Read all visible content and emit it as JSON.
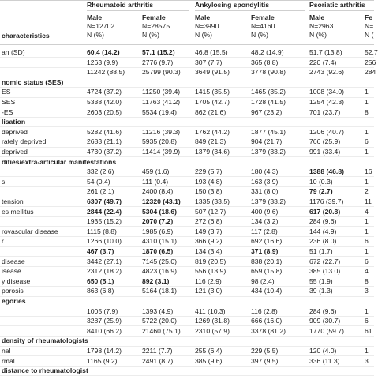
{
  "header": {
    "groups": [
      "Rheumatoid arthritis",
      "Ankylosing spondylitis",
      "Psoriatic arthritis"
    ],
    "stub": "characteristics",
    "columns": [
      [
        "Male",
        "N=12702",
        "N (%)"
      ],
      [
        "Female",
        "N=28575",
        "N (%)"
      ],
      [
        "Male",
        "N=3990",
        "N (%)"
      ],
      [
        "Female",
        "N=4160",
        "N (%)"
      ],
      [
        "Male",
        "N=2963",
        "N (%)"
      ],
      [
        "Fe",
        "N=",
        "N ("
      ]
    ]
  },
  "table": {
    "rows": [
      {
        "label": "an (SD)",
        "cells": [
          "60.4 (14.2)",
          "57.1 (15.2)",
          "46.8 (15.5)",
          "48.2 (14.9)",
          "51.7 (13.8)",
          "52.7"
        ],
        "bold": [
          0,
          1
        ]
      },
      {
        "label": "",
        "cells": [
          "1263 (9.9)",
          "2776 (9.7)",
          "307 (7.7)",
          "365 (8.8)",
          "220 (7.4)",
          "256"
        ],
        "bold": []
      },
      {
        "label": "",
        "cells": [
          "11242 (88.5)",
          "25799 (90.3)",
          "3649 (91.5)",
          "3778 (90.8)",
          "2743 (92.6)",
          "284"
        ],
        "bold": []
      },
      {
        "label": "nomic status (SES)",
        "cells": [
          "",
          "",
          "",
          "",
          "",
          ""
        ],
        "bold": []
      },
      {
        "label": "ES",
        "cells": [
          "4724 (37.2)",
          "11250 (39.4)",
          "1415 (35.5)",
          "1465 (35.2)",
          "1008 (34.0)",
          "1"
        ],
        "bold": []
      },
      {
        "label": "SES",
        "cells": [
          "5338 (42.0)",
          "11763 (41.2)",
          "1705 (42.7)",
          "1728 (41.5)",
          "1254 (42.3)",
          "1"
        ],
        "bold": []
      },
      {
        "label": "-ES",
        "cells": [
          "2603 (20.5)",
          "5534 (19.4)",
          "862 (21.6)",
          "967 (23.2)",
          "701 (23.7)",
          "8"
        ],
        "bold": []
      },
      {
        "label": "lisation",
        "cells": [
          "",
          "",
          "",
          "",
          "",
          ""
        ],
        "bold": []
      },
      {
        "label": "deprived",
        "cells": [
          "5282 (41.6)",
          "11216 (39.3)",
          "1762 (44.2)",
          "1877 (45.1)",
          "1206 (40.7)",
          "1"
        ],
        "bold": []
      },
      {
        "label": "rately deprived",
        "cells": [
          "2683 (21.1)",
          "5935 (20.8)",
          "849 (21.3)",
          "904 (21.7)",
          "766 (25.9)",
          "6"
        ],
        "bold": []
      },
      {
        "label": "deprived",
        "cells": [
          "4730 (37.2)",
          "11414 (39.9)",
          "1379 (34.6)",
          "1379 (33.2)",
          "991 (33.4)",
          "1"
        ],
        "bold": []
      },
      {
        "label": "dities/extra-articular manifestations",
        "cells": [
          "",
          "",
          "",
          "",
          "",
          ""
        ],
        "bold": []
      },
      {
        "label": "",
        "cells": [
          "332 (2.6)",
          "459 (1.6)",
          "229 (5.7)",
          "180 (4.3)",
          "1388 (46.8)",
          "16"
        ],
        "bold": [
          4
        ]
      },
      {
        "label": "s",
        "cells": [
          "54 (0.4)",
          "111 (0.4)",
          "193 (4.8)",
          "163 (3.9)",
          "10 (0.3)",
          "1"
        ],
        "bold": []
      },
      {
        "label": "",
        "cells": [
          "261 (2.1)",
          "2400 (8.4)",
          "150 (3.8)",
          "331 (8.0)",
          "79 (2.7)",
          "2"
        ],
        "bold": [
          4
        ]
      },
      {
        "label": "tension",
        "cells": [
          "6307 (49.7)",
          "12320 (43.1)",
          "1335 (33.5)",
          "1379 (33.2)",
          "1176 (39.7)",
          "11"
        ],
        "bold": [
          0,
          1
        ]
      },
      {
        "label": "es mellitus",
        "cells": [
          "2844 (22.4)",
          "5304 (18.6)",
          "507 (12.7)",
          "400 (9.6)",
          "617 (20.8)",
          "4"
        ],
        "bold": [
          0,
          1,
          4
        ]
      },
      {
        "label": "",
        "cells": [
          "1935 (15.2)",
          "2070 (7.2)",
          "272 (6.8)",
          "134 (3.2)",
          "284 (9.6)",
          "1"
        ],
        "bold": [
          1
        ]
      },
      {
        "label": "rovascular disease",
        "cells": [
          "1115 (8.8)",
          "1985 (6.9)",
          "149 (3.7)",
          "117 (2.8)",
          "144 (4.9)",
          "1"
        ],
        "bold": []
      },
      {
        "label": "r",
        "cells": [
          "1266 (10.0)",
          "4310 (15.1)",
          "366 (9.2)",
          "692 (16.6)",
          "236 (8.0)",
          "6"
        ],
        "bold": []
      },
      {
        "label": "",
        "cells": [
          "467 (3.7)",
          "1870 (6.5)",
          "134 (3.4)",
          "371 (8.9)",
          "51 (1.7)",
          "1"
        ],
        "bold": [
          0,
          1,
          3
        ]
      },
      {
        "label": "disease",
        "cells": [
          "3442 (27.1)",
          "7145 (25.0)",
          "819 (20.5)",
          "838 (20.1)",
          "672 (22.7)",
          "6"
        ],
        "bold": []
      },
      {
        "label": "isease",
        "cells": [
          "2312 (18.2)",
          "4823 (16.9)",
          "556 (13.9)",
          "659 (15.8)",
          "385 (13.0)",
          "4"
        ],
        "bold": []
      },
      {
        "label": "y disease",
        "cells": [
          "650 (5.1)",
          "892 (3.1)",
          "116 (2.9)",
          "98 (2.4)",
          "55 (1.9)",
          "8"
        ],
        "bold": [
          0,
          1
        ]
      },
      {
        "label": "porosis",
        "cells": [
          "863 (6.8)",
          "5164 (18.1)",
          "121 (3.0)",
          "434 (10.4)",
          "39 (1.3)",
          "3"
        ],
        "bold": []
      },
      {
        "label": "egories",
        "cells": [
          "",
          "",
          "",
          "",
          "",
          ""
        ],
        "bold": []
      },
      {
        "label": "",
        "cells": [
          "1005 (7.9)",
          "1393 (4.9)",
          "411 (10.3)",
          "116 (2.8)",
          "284 (9.6)",
          "1"
        ],
        "bold": []
      },
      {
        "label": "",
        "cells": [
          "3287 (25.9)",
          "5722 (20.0)",
          "1269 (31.8)",
          "666 (16.0)",
          "909 (30.7)",
          "6"
        ],
        "bold": []
      },
      {
        "label": "",
        "cells": [
          "8410 (66.2)",
          "21460 (75.1)",
          "2310 (57.9)",
          "3378 (81.2)",
          "1770 (59.7)",
          "61"
        ],
        "bold": []
      },
      {
        "label": "density of rheumatologists",
        "cells": [
          "",
          "",
          "",
          "",
          "",
          ""
        ],
        "bold": []
      },
      {
        "label": "nal",
        "cells": [
          "1798 (14.2)",
          "2211 (7.7)",
          "255 (6.4)",
          "229 (5.5)",
          "120 (4.0)",
          "1"
        ],
        "bold": []
      },
      {
        "label": "rmal",
        "cells": [
          "1165 (9.2)",
          "2491 (8.7)",
          "385 (9.6)",
          "397 (9.5)",
          "336 (11.3)",
          "3"
        ],
        "bold": []
      },
      {
        "label": "distance to rheumatologist",
        "cells": [
          "",
          "",
          "",
          "",
          "",
          ""
        ],
        "bold": []
      }
    ]
  }
}
